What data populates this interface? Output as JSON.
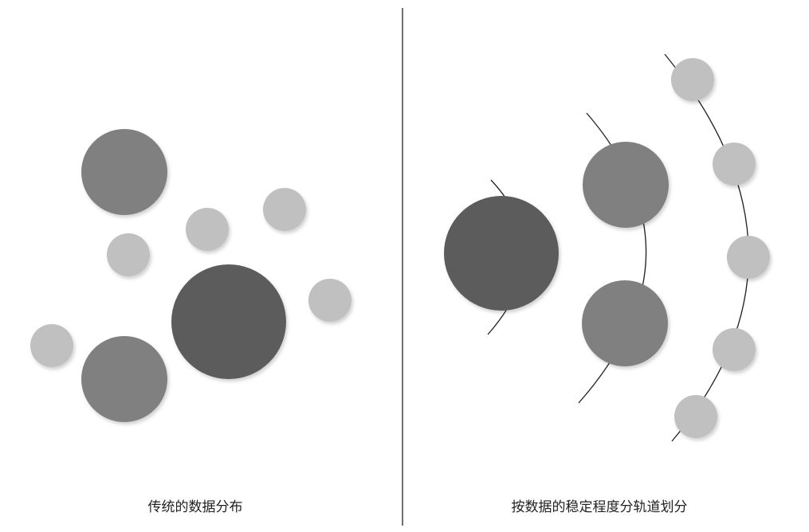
{
  "captions": {
    "left": "传统的数据分布",
    "right": "按数据的稳定程度分轨道划分"
  },
  "colors": {
    "dark": "#5b5b5b",
    "medium": "#808080",
    "light": "#c0c0c0",
    "shadow": "#d9d9d9",
    "line": "#222222"
  }
}
